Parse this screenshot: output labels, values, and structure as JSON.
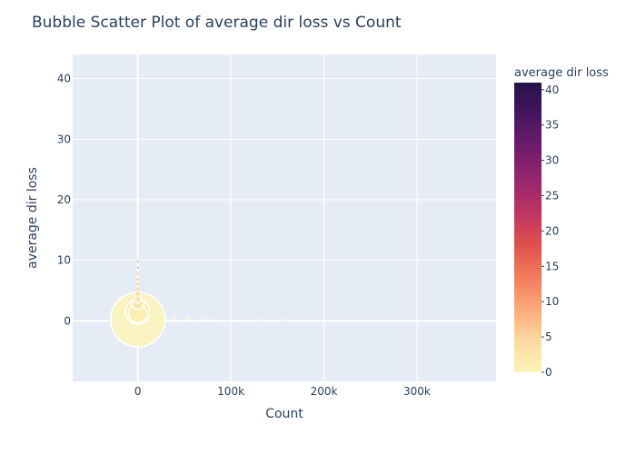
{
  "chart_data": {
    "type": "scatter",
    "variant": "bubble",
    "title": "Bubble Scatter Plot of average dir loss vs Count",
    "xlabel": "Count",
    "ylabel": "average dir loss",
    "xlim": [
      -70000,
      385000
    ],
    "ylim": [
      -10,
      44
    ],
    "x_ticks": [
      {
        "value": 0,
        "label": "0"
      },
      {
        "value": 100000,
        "label": "100k"
      },
      {
        "value": 200000,
        "label": "200k"
      },
      {
        "value": 300000,
        "label": "300k"
      }
    ],
    "y_ticks": [
      {
        "value": 0,
        "label": "0"
      },
      {
        "value": 10,
        "label": "10"
      },
      {
        "value": 20,
        "label": "20"
      },
      {
        "value": 30,
        "label": "30"
      },
      {
        "value": 40,
        "label": "40"
      }
    ],
    "colorbar": {
      "title": "average dir loss",
      "colorscale": "magma-reversed",
      "range": [
        0,
        41
      ],
      "ticks": [
        0,
        5,
        10,
        15,
        20,
        25,
        30,
        35,
        40
      ],
      "colors": [
        "#fcf5b8",
        "#fcd9a0",
        "#fba97a",
        "#f3795a",
        "#de4e4e",
        "#bd3463",
        "#95266e",
        "#6e1c6c",
        "#461660",
        "#24124a"
      ]
    },
    "grid": true,
    "plot_bgcolor": "#e5ecf6",
    "points": [
      {
        "x": 0,
        "y": 0.2,
        "size": 30000
      },
      {
        "x": 0,
        "y": 1.5,
        "size": 6000
      },
      {
        "x": 0,
        "y": 1.2,
        "size": 3500
      },
      {
        "x": 0,
        "y": 2.8,
        "size": 1300
      },
      {
        "x": 0,
        "y": 3.6,
        "size": 500
      },
      {
        "x": 0,
        "y": 4.5,
        "size": 250
      },
      {
        "x": 0,
        "y": 5.3,
        "size": 150
      },
      {
        "x": 0,
        "y": 6.1,
        "size": 100
      },
      {
        "x": 0,
        "y": 6.9,
        "size": 70
      },
      {
        "x": 0,
        "y": 7.8,
        "size": 50
      },
      {
        "x": 0,
        "y": 8.8,
        "size": 30
      },
      {
        "x": 0,
        "y": 9.8,
        "size": 20
      },
      {
        "x": 30000,
        "y": 0.4,
        "size": 30
      },
      {
        "x": 40000,
        "y": 0.7,
        "size": 25
      },
      {
        "x": 55000,
        "y": 0.4,
        "size": 20
      },
      {
        "x": 75000,
        "y": 0.3,
        "size": 20
      },
      {
        "x": 100000,
        "y": 0.2,
        "size": 15
      },
      {
        "x": 130000,
        "y": 0.1,
        "size": 10
      },
      {
        "x": 160000,
        "y": 0.1,
        "size": 8
      }
    ]
  }
}
